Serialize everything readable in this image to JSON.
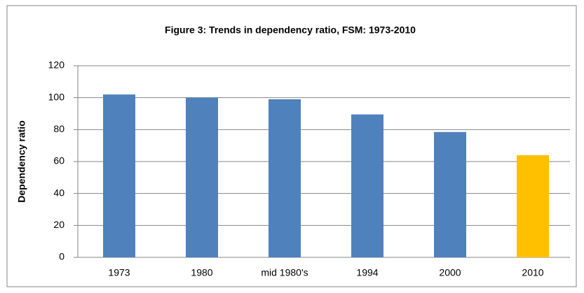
{
  "chart_data": {
    "type": "bar",
    "title": "Figure 3: Trends in dependency ratio, FSM: 1973-2010",
    "y_label": "Dependency ratio",
    "categories": [
      "1973",
      "1980",
      "mid 1980's",
      "1994",
      "2000",
      "2010"
    ],
    "values": [
      102,
      100,
      99,
      89.5,
      78.5,
      64
    ],
    "colors": [
      "#4f81bd",
      "#4f81bd",
      "#4f81bd",
      "#4f81bd",
      "#4f81bd",
      "#ffc000"
    ],
    "ylim": [
      0,
      120
    ],
    "yticks": [
      0,
      20,
      40,
      60,
      80,
      100,
      120
    ],
    "grid": true
  }
}
